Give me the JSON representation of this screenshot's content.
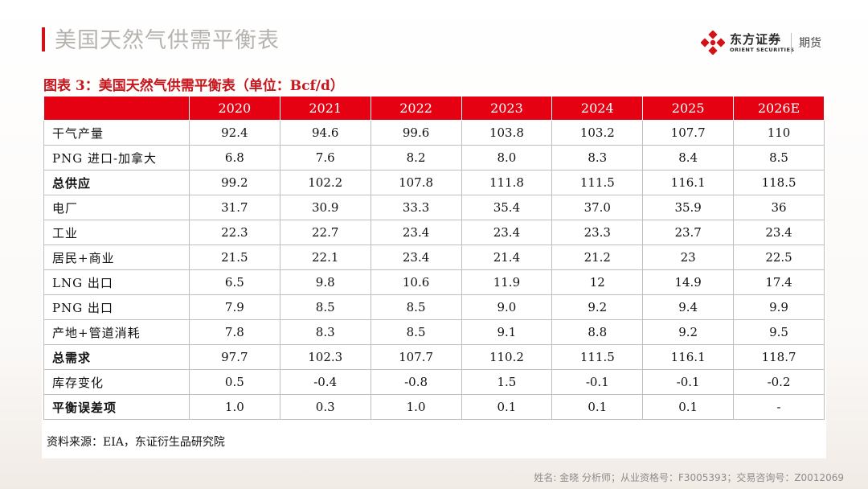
{
  "header": {
    "title": "美国天然气供需平衡表",
    "logo_cn": "东方证券",
    "logo_en": "ORIENT SECURITIES",
    "logo_sub": "期货",
    "accent_color": "#e50012"
  },
  "caption": "图表 3：美国天然气供需平衡表（单位：Bcf/d）",
  "table": {
    "columns": [
      "",
      "2020",
      "2021",
      "2022",
      "2023",
      "2024",
      "2025",
      "2026E"
    ],
    "rows": [
      {
        "label": "干气产量",
        "bold": false,
        "values": [
          "92.4",
          "94.6",
          "99.6",
          "103.8",
          "103.2",
          "107.7",
          "110"
        ]
      },
      {
        "label": "PNG 进口-加拿大",
        "bold": false,
        "values": [
          "6.8",
          "7.6",
          "8.2",
          "8.0",
          "8.3",
          "8.4",
          "8.5"
        ]
      },
      {
        "label": "总供应",
        "bold": true,
        "values": [
          "99.2",
          "102.2",
          "107.8",
          "111.8",
          "111.5",
          "116.1",
          "118.5"
        ]
      },
      {
        "label": "电厂",
        "bold": false,
        "values": [
          "31.7",
          "30.9",
          "33.3",
          "35.4",
          "37.0",
          "35.9",
          "36"
        ]
      },
      {
        "label": "工业",
        "bold": false,
        "values": [
          "22.3",
          "22.7",
          "23.4",
          "23.4",
          "23.3",
          "23.7",
          "23.4"
        ]
      },
      {
        "label": "居民+商业",
        "bold": false,
        "values": [
          "21.5",
          "22.1",
          "23.4",
          "21.4",
          "21.2",
          "23",
          "22.5"
        ]
      },
      {
        "label": "LNG 出口",
        "bold": false,
        "values": [
          "6.5",
          "9.8",
          "10.6",
          "11.9",
          "12",
          "14.9",
          "17.4"
        ]
      },
      {
        "label": "PNG 出口",
        "bold": false,
        "values": [
          "7.9",
          "8.5",
          "8.5",
          "9.0",
          "9.2",
          "9.4",
          "9.9"
        ]
      },
      {
        "label": "产地+管道消耗",
        "bold": false,
        "values": [
          "7.8",
          "8.3",
          "8.5",
          "9.1",
          "8.8",
          "9.2",
          "9.5"
        ]
      },
      {
        "label": "总需求",
        "bold": true,
        "values": [
          "97.7",
          "102.3",
          "107.7",
          "110.2",
          "111.5",
          "116.1",
          "118.7"
        ]
      },
      {
        "label": "库存变化",
        "bold": false,
        "values": [
          "0.5",
          "-0.4",
          "-0.8",
          "1.5",
          "-0.1",
          "-0.1",
          "-0.2"
        ]
      },
      {
        "label": "平衡误差项",
        "bold": true,
        "values": [
          "1.0",
          "0.3",
          "1.0",
          "0.1",
          "0.1",
          "0.1",
          "-"
        ]
      }
    ]
  },
  "source": "资料来源：EIA，东证衍生品研究院",
  "footer": "姓名: 金晓 分析师；从业资格号：F3005393；交易咨询号：Z0012069"
}
